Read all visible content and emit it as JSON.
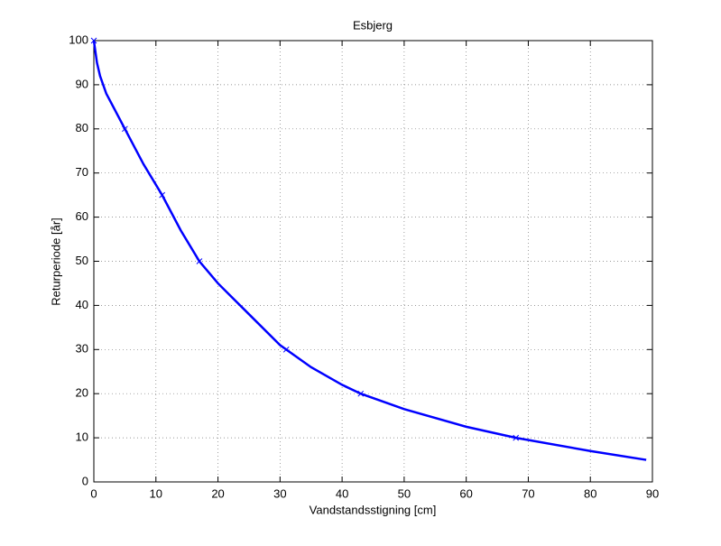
{
  "chart_data": {
    "type": "line",
    "title": "Esbjerg",
    "xlabel": "Vandstandsstigning [cm]",
    "ylabel": "Returperiode [år]",
    "xlim": [
      0,
      90
    ],
    "ylim": [
      0,
      100
    ],
    "xticks": [
      0,
      10,
      20,
      30,
      40,
      50,
      60,
      70,
      80,
      90
    ],
    "yticks": [
      0,
      10,
      20,
      30,
      40,
      50,
      60,
      70,
      80,
      90,
      100
    ],
    "grid": true,
    "series": [
      {
        "color": "#0000ff",
        "marker": "none",
        "x": [
          0,
          0.5,
          1,
          2,
          5,
          8,
          11,
          14,
          17,
          20,
          25,
          30,
          35,
          40,
          43,
          50,
          60,
          68,
          80,
          89
        ],
        "values": [
          100,
          95,
          92,
          88,
          80,
          72,
          65,
          57,
          50,
          45,
          38,
          31,
          26,
          22,
          20,
          16.5,
          12.5,
          10,
          7,
          5
        ]
      },
      {
        "color": "#0000ff",
        "marker": "x",
        "x": [
          0,
          5,
          11,
          17,
          31,
          43,
          68
        ],
        "values": [
          100,
          80,
          65,
          50,
          30,
          20,
          10
        ]
      }
    ]
  }
}
